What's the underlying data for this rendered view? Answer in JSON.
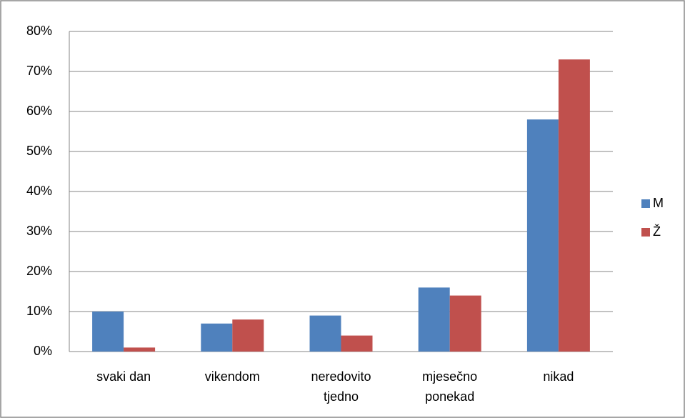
{
  "chart_data": {
    "type": "bar",
    "categories": [
      "svaki dan",
      "vikendom",
      "neredovito tjedno",
      "mjesečno ponekad",
      "nikad"
    ],
    "series": [
      {
        "name": "M",
        "color": "#4f81bd",
        "values": [
          10,
          7,
          9,
          16,
          58
        ]
      },
      {
        "name": "Ž",
        "color": "#c0504d",
        "values": [
          1,
          8,
          4,
          14,
          73
        ]
      }
    ],
    "ylim": [
      0,
      80
    ],
    "yticks": [
      {
        "value": 0,
        "label": "0%"
      },
      {
        "value": 10,
        "label": "10%"
      },
      {
        "value": 20,
        "label": "20%"
      },
      {
        "value": 30,
        "label": "30%"
      },
      {
        "value": 40,
        "label": "40%"
      },
      {
        "value": 50,
        "label": "50%"
      },
      {
        "value": 60,
        "label": "60%"
      },
      {
        "value": 70,
        "label": "70%"
      },
      {
        "value": 80,
        "label": "80%"
      }
    ],
    "grid": true,
    "legend": "right"
  }
}
